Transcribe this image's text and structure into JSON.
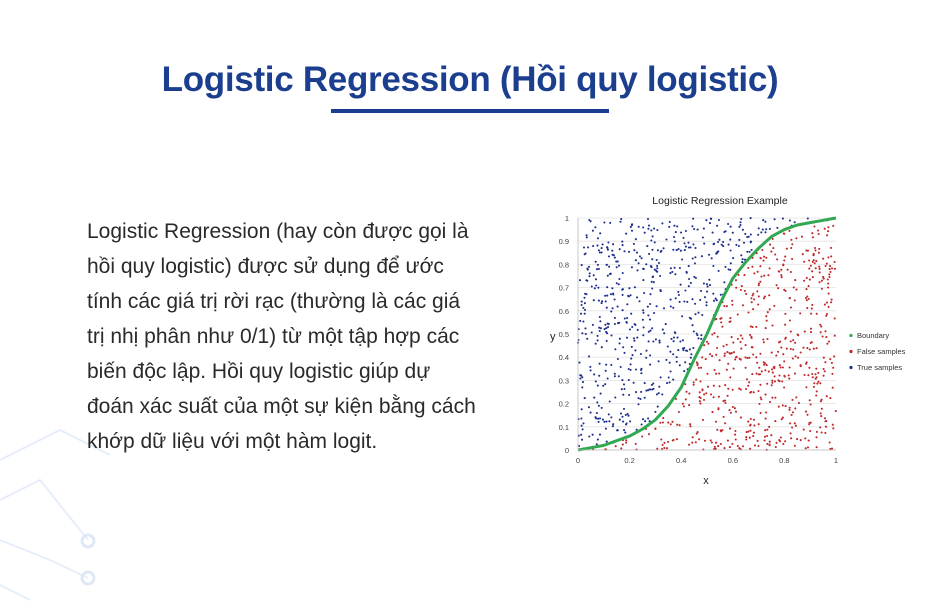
{
  "title": "Logistic Regression (Hồi quy logistic)",
  "body_lines": [
    "Logistic Regression (hay còn được gọi là",
    "hồi quy logistic) được sử dụng để ước",
    "tính các giá trị rời rạc (thường là các giá",
    "trị nhị phân như 0/1) từ một tập hợp các",
    "biến độc lập. Hồi quy logistic giúp dự",
    "đoán xác suất của một sự kiện bằng cách",
    "khớp dữ liệu với một hàm logit."
  ],
  "colors": {
    "title": "#1b3f8e",
    "boundary": "#33a852",
    "false_samples": "#c0282a",
    "true_samples": "#1e2f8c"
  },
  "chart_data": {
    "type": "scatter",
    "title": "Logistic Regression Example",
    "xlabel": "x",
    "ylabel": "y",
    "xlim": [
      0,
      1
    ],
    "ylim": [
      0,
      1
    ],
    "x_ticks": [
      "0",
      "0.2",
      "0.4",
      "0.6",
      "0.8",
      "1"
    ],
    "y_ticks": [
      "0",
      "0.1",
      "0.2",
      "0.3",
      "0.4",
      "0.5",
      "0.6",
      "0.7",
      "0.8",
      "0.9",
      "1"
    ],
    "grid": "horizontal",
    "legend_position": "right",
    "series": [
      {
        "name": "Boundary",
        "kind": "line",
        "x": [
          0,
          0.05,
          0.1,
          0.15,
          0.2,
          0.25,
          0.3,
          0.35,
          0.4,
          0.45,
          0.5,
          0.55,
          0.6,
          0.65,
          0.7,
          0.75,
          0.8,
          0.85,
          0.9,
          0.95,
          1
        ],
        "y": [
          0,
          0.01,
          0.02,
          0.04,
          0.06,
          0.09,
          0.13,
          0.19,
          0.27,
          0.39,
          0.5,
          0.63,
          0.74,
          0.81,
          0.87,
          0.92,
          0.95,
          0.97,
          0.98,
          0.99,
          1
        ]
      },
      {
        "name": "False samples",
        "kind": "points",
        "description_rule": "below boundary",
        "approx_count": 700
      },
      {
        "name": "True samples",
        "kind": "points",
        "description_rule": "above boundary",
        "approx_count": 500
      }
    ]
  }
}
